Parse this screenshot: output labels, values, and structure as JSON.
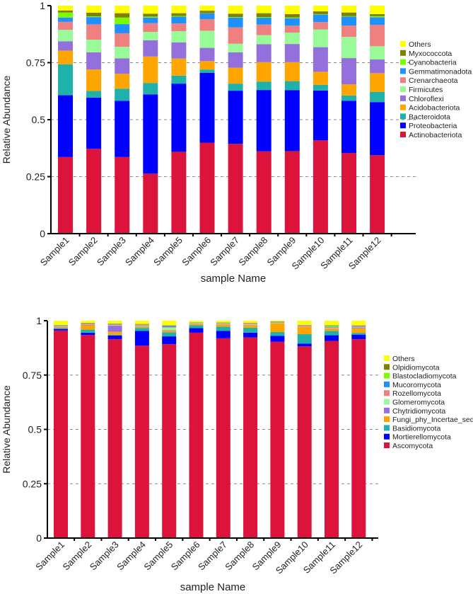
{
  "chart_data": [
    {
      "type": "bar",
      "stacked": true,
      "title": "",
      "xlabel": "sample Name",
      "ylabel": "Relative Abundance",
      "ylim": [
        0,
        1
      ],
      "yticks": [
        "0",
        "0.25",
        "0.5",
        "0.75",
        "1"
      ],
      "grid": "dashed horizontal",
      "legend_placement": "right",
      "categories": [
        "Sample1",
        "Sample2",
        "Sample3",
        "Sample4",
        "Sample5",
        "Sample6",
        "Sample7",
        "Sample8",
        "Sample9",
        "Sample10",
        "Sample11",
        "Sample12"
      ],
      "series": [
        {
          "name": "Actinobacteriota",
          "color": "#dc143c",
          "values": [
            0.336,
            0.372,
            0.336,
            0.263,
            0.359,
            0.399,
            0.394,
            0.361,
            0.362,
            0.409,
            0.354,
            0.344
          ]
        },
        {
          "name": "Proteobacteria",
          "color": "#0000ff",
          "values": [
            0.271,
            0.225,
            0.247,
            0.348,
            0.299,
            0.306,
            0.233,
            0.269,
            0.267,
            0.219,
            0.229,
            0.233
          ]
        },
        {
          "name": "Bacteroidota",
          "color": "#20b2aa",
          "values": [
            0.136,
            0.029,
            0.053,
            0.05,
            0.035,
            0.015,
            0.031,
            0.037,
            0.04,
            0.025,
            0.023,
            0.045
          ]
        },
        {
          "name": "Acidobacteriota",
          "color": "#ffa500",
          "values": [
            0.06,
            0.094,
            0.065,
            0.116,
            0.075,
            0.037,
            0.07,
            0.085,
            0.083,
            0.057,
            0.049,
            0.082
          ]
        },
        {
          "name": "Chloroflexi",
          "color": "#9370db",
          "values": [
            0.041,
            0.075,
            0.068,
            0.071,
            0.071,
            0.058,
            0.067,
            0.079,
            0.08,
            0.108,
            0.115,
            0.06
          ]
        },
        {
          "name": "Firmicutes",
          "color": "#98fb98",
          "values": [
            0.05,
            0.056,
            0.051,
            0.037,
            0.049,
            0.075,
            0.038,
            0.04,
            0.05,
            0.078,
            0.093,
            0.058
          ]
        },
        {
          "name": "Crenarchaeota",
          "color": "#f08080",
          "values": [
            0.035,
            0.067,
            0.059,
            0.038,
            0.034,
            0.051,
            0.072,
            0.046,
            0.03,
            0.032,
            0.05,
            0.094
          ]
        },
        {
          "name": "Gemmatimonadota",
          "color": "#1e90ff",
          "values": [
            0.019,
            0.032,
            0.04,
            0.025,
            0.03,
            0.025,
            0.043,
            0.03,
            0.033,
            0.033,
            0.039,
            0.033
          ]
        },
        {
          "name": "Cyanobacteria",
          "color": "#7cfc00",
          "values": [
            0.022,
            0.003,
            0.029,
            0.004,
            0.003,
            0.001,
            0.002,
            0.003,
            0.003,
            0.002,
            0.002,
            0.005
          ]
        },
        {
          "name": "Myxococcota",
          "color": "#808000",
          "values": [
            0.009,
            0.016,
            0.019,
            0.013,
            0.012,
            0.011,
            0.015,
            0.017,
            0.015,
            0.012,
            0.016,
            0.009
          ]
        },
        {
          "name": "Others",
          "color": "#ffff00",
          "values": [
            0.021,
            0.031,
            0.033,
            0.035,
            0.033,
            0.022,
            0.035,
            0.033,
            0.037,
            0.025,
            0.03,
            0.037
          ]
        }
      ]
    },
    {
      "type": "bar",
      "stacked": true,
      "title": "",
      "xlabel": "sample Name",
      "ylabel": "Relative Abundance",
      "ylim": [
        0,
        1
      ],
      "yticks": [
        "0",
        "0.25",
        "0.5",
        "0.75",
        "1"
      ],
      "grid": "dashed horizontal",
      "legend_placement": "right",
      "categories": [
        "Sample1",
        "Sample2",
        "Sample3",
        "Sample4",
        "Sample5",
        "Sample6",
        "Sample7",
        "Sample8",
        "Sample9",
        "Sample10",
        "Sample11",
        "Sample12"
      ],
      "series": [
        {
          "name": "Ascomycota",
          "color": "#dc143c",
          "values": [
            0.955,
            0.934,
            0.915,
            0.885,
            0.892,
            0.945,
            0.919,
            0.923,
            0.903,
            0.882,
            0.907,
            0.915
          ]
        },
        {
          "name": "Mortierellomycota",
          "color": "#0000ff",
          "values": [
            0.007,
            0.011,
            0.017,
            0.068,
            0.036,
            0.021,
            0.034,
            0.022,
            0.027,
            0.013,
            0.026,
            0.021
          ]
        },
        {
          "name": "Basidiomycota",
          "color": "#20b2aa",
          "values": [
            0.004,
            0.014,
            0.003,
            0.014,
            0.019,
            0.013,
            0.02,
            0.023,
            0.018,
            0.043,
            0.02,
            0.008
          ]
        },
        {
          "name": "Fungi_phy_Incertae_sedis",
          "color": "#ffa500",
          "values": [
            0.004,
            0.02,
            0.014,
            0.006,
            0.008,
            0.006,
            0.01,
            0.012,
            0.04,
            0.033,
            0.01,
            0.02
          ]
        },
        {
          "name": "Chytridiomycota",
          "color": "#9370db",
          "values": [
            0.002,
            0.002,
            0.028,
            0.002,
            0.002,
            0.001,
            0.001,
            0.001,
            0.001,
            0.001,
            0.002,
            0.003
          ]
        },
        {
          "name": "Glomeromycota",
          "color": "#98fb98",
          "values": [
            0.002,
            0.001,
            0.002,
            0.002,
            0.011,
            0.002,
            0.002,
            0.002,
            0.001,
            0.001,
            0.002,
            0.002
          ]
        },
        {
          "name": "Rozellomycota",
          "color": "#f08080",
          "values": [
            0.004,
            0.004,
            0.004,
            0.004,
            0.004,
            0.002,
            0.003,
            0.005,
            0.001,
            0.005,
            0.004,
            0.006
          ]
        },
        {
          "name": "Mucoromycota",
          "color": "#1e90ff",
          "values": [
            0.001,
            0.001,
            0.002,
            0.001,
            0.005,
            0.001,
            0.001,
            0.001,
            0.001,
            0.001,
            0.002,
            0.002
          ]
        },
        {
          "name": "Blastocladiomycota",
          "color": "#7cfc00",
          "values": [
            0.001,
            0.001,
            0.001,
            0.001,
            0.001,
            0.001,
            0.001,
            0.001,
            0.001,
            0.001,
            0.005,
            0.001
          ]
        },
        {
          "name": "Olpidiomycota",
          "color": "#808000",
          "values": [
            0.001,
            0.002,
            0.001,
            0.002,
            0.001,
            0.001,
            0.001,
            0.001,
            0.003,
            0.001,
            0.002,
            0.001
          ]
        },
        {
          "name": "Others",
          "color": "#ffff00",
          "values": [
            0.019,
            0.01,
            0.013,
            0.015,
            0.021,
            0.007,
            0.008,
            0.009,
            0.004,
            0.019,
            0.02,
            0.021
          ]
        }
      ]
    }
  ]
}
